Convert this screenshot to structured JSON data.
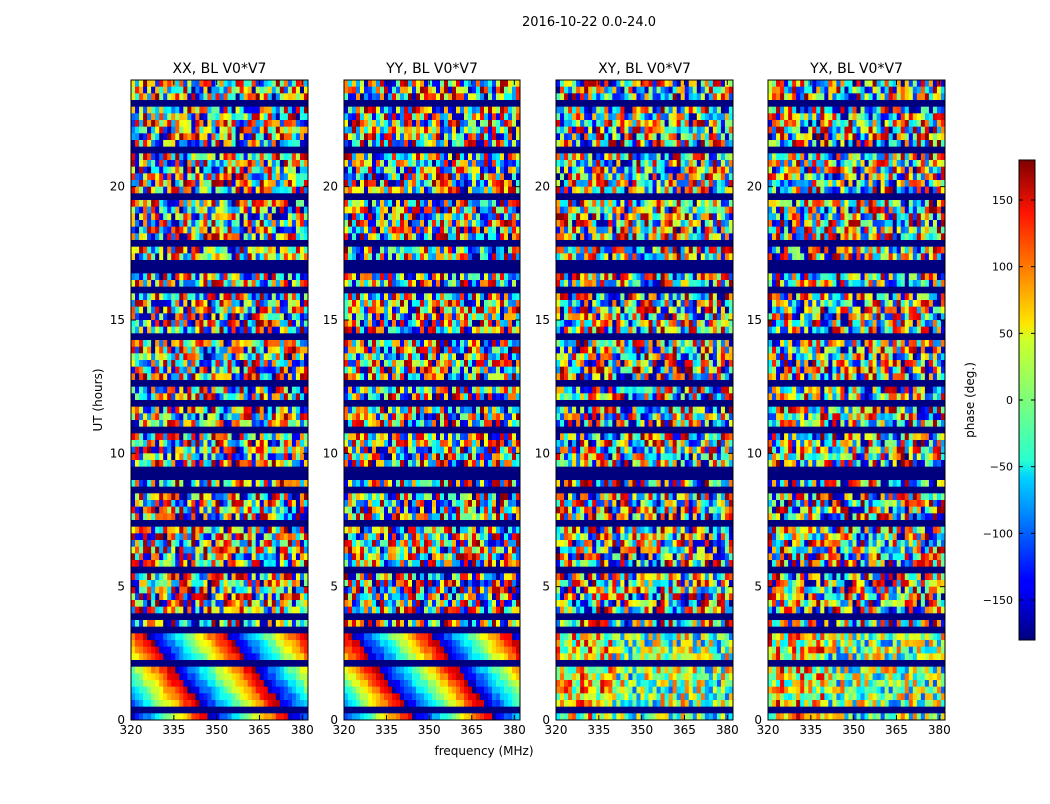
{
  "chart_data": {
    "type": "heatmap",
    "title": "2016-10-22 0.0-24.0",
    "xlabel": "frequency (MHz)",
    "ylabel": "UT (hours)",
    "x_range": [
      320,
      382
    ],
    "y_range": [
      0,
      24
    ],
    "x_ticks": [
      "320",
      "335",
      "350",
      "365",
      "380"
    ],
    "y_ticks": [
      "0",
      "5",
      "10",
      "15",
      "20"
    ],
    "panels": [
      {
        "title": "XX, BL V0*V7",
        "pol": "XX"
      },
      {
        "title": "YY, BL V0*V7",
        "pol": "YY"
      },
      {
        "title": "XY, BL V0*V7",
        "pol": "XY"
      },
      {
        "title": "YX, BL V0*V7",
        "pol": "YX"
      }
    ],
    "colorbar": {
      "label": "phase (deg.)",
      "range": [
        -180,
        180
      ],
      "ticks": [
        "150",
        "100",
        "50",
        "0",
        "−50",
        "−100",
        "−150"
      ],
      "colormap": "jet"
    },
    "flagged_bands_ut_hours": [
      [
        16.7,
        17.3
      ],
      [
        8.4,
        8.8
      ],
      [
        11.7,
        11.9
      ],
      [
        9.2,
        9.4
      ],
      [
        20.0,
        20.1
      ],
      [
        3.3,
        3.5
      ]
    ]
  },
  "colors": {
    "background": "#ffffff",
    "flagged": "#00007f"
  }
}
